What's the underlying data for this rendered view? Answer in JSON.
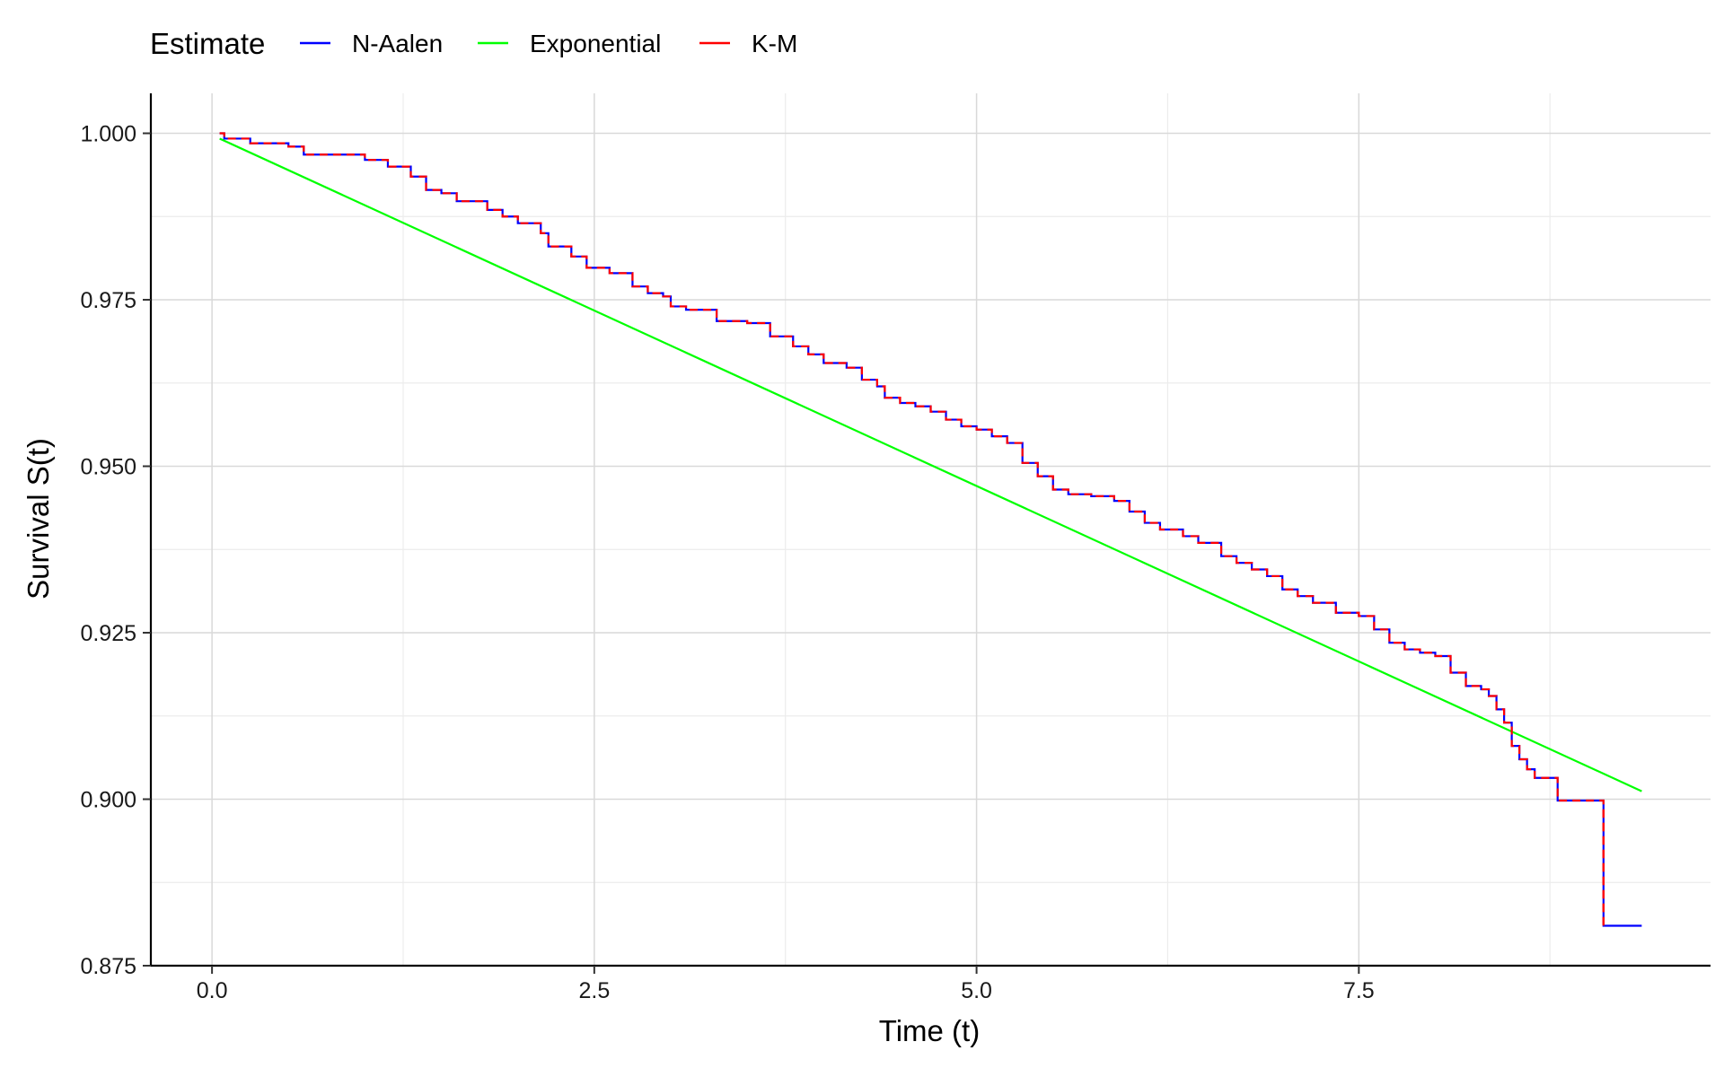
{
  "chart_data": {
    "type": "line",
    "title": "",
    "xlabel": "Time (t)",
    "ylabel": "Survival S(t)",
    "xlim": [
      -0.4,
      9.8
    ],
    "ylim": [
      0.875,
      1.006
    ],
    "x_ticks": [
      0.0,
      2.5,
      5.0,
      7.5
    ],
    "x_tick_labels": [
      "0.0",
      "2.5",
      "5.0",
      "7.5"
    ],
    "y_ticks": [
      0.875,
      0.9,
      0.925,
      0.95,
      0.975,
      1.0
    ],
    "y_tick_labels": [
      "0.875",
      "0.900",
      "0.925",
      "0.950",
      "0.975",
      "1.000"
    ],
    "grid": true,
    "legend": {
      "title": "Estimate",
      "position": "top-left",
      "entries": [
        "N-Aalen",
        "Exponential",
        "K-M"
      ]
    },
    "series": [
      {
        "name": "N-Aalen",
        "color": "#0000FF",
        "style": "step",
        "points": [
          [
            0.05,
            1.0
          ],
          [
            0.08,
            0.9992
          ],
          [
            0.25,
            0.9985
          ],
          [
            0.5,
            0.998
          ],
          [
            0.6,
            0.9968
          ],
          [
            0.9,
            0.9968
          ],
          [
            1.0,
            0.996
          ],
          [
            1.15,
            0.995
          ],
          [
            1.3,
            0.9935
          ],
          [
            1.4,
            0.9915
          ],
          [
            1.5,
            0.991
          ],
          [
            1.6,
            0.9898
          ],
          [
            1.7,
            0.9898
          ],
          [
            1.8,
            0.9885
          ],
          [
            1.9,
            0.9875
          ],
          [
            2.0,
            0.9865
          ],
          [
            2.15,
            0.985
          ],
          [
            2.2,
            0.983
          ],
          [
            2.35,
            0.9815
          ],
          [
            2.45,
            0.9798
          ],
          [
            2.6,
            0.979
          ],
          [
            2.75,
            0.977
          ],
          [
            2.85,
            0.976
          ],
          [
            2.95,
            0.9755
          ],
          [
            3.0,
            0.974
          ],
          [
            3.1,
            0.9735
          ],
          [
            3.3,
            0.9718
          ],
          [
            3.5,
            0.9715
          ],
          [
            3.65,
            0.9695
          ],
          [
            3.8,
            0.968
          ],
          [
            3.9,
            0.9668
          ],
          [
            4.0,
            0.9655
          ],
          [
            4.15,
            0.9648
          ],
          [
            4.25,
            0.963
          ],
          [
            4.35,
            0.962
          ],
          [
            4.4,
            0.9603
          ],
          [
            4.5,
            0.9595
          ],
          [
            4.6,
            0.959
          ],
          [
            4.7,
            0.9582
          ],
          [
            4.8,
            0.957
          ],
          [
            4.9,
            0.956
          ],
          [
            5.0,
            0.9555
          ],
          [
            5.1,
            0.9545
          ],
          [
            5.2,
            0.9535
          ],
          [
            5.3,
            0.9505
          ],
          [
            5.4,
            0.9485
          ],
          [
            5.5,
            0.9465
          ],
          [
            5.6,
            0.9458
          ],
          [
            5.75,
            0.9455
          ],
          [
            5.9,
            0.9448
          ],
          [
            6.0,
            0.9432
          ],
          [
            6.1,
            0.9415
          ],
          [
            6.2,
            0.9405
          ],
          [
            6.35,
            0.9395
          ],
          [
            6.45,
            0.9385
          ],
          [
            6.6,
            0.9365
          ],
          [
            6.7,
            0.9355
          ],
          [
            6.8,
            0.9345
          ],
          [
            6.9,
            0.9335
          ],
          [
            7.0,
            0.9315
          ],
          [
            7.1,
            0.9305
          ],
          [
            7.2,
            0.9295
          ],
          [
            7.35,
            0.928
          ],
          [
            7.5,
            0.9275
          ],
          [
            7.6,
            0.9255
          ],
          [
            7.7,
            0.9235
          ],
          [
            7.8,
            0.9225
          ],
          [
            7.9,
            0.922
          ],
          [
            8.0,
            0.9215
          ],
          [
            8.1,
            0.919
          ],
          [
            8.2,
            0.917
          ],
          [
            8.3,
            0.9165
          ],
          [
            8.35,
            0.9155
          ],
          [
            8.4,
            0.9135
          ],
          [
            8.45,
            0.9115
          ],
          [
            8.5,
            0.908
          ],
          [
            8.55,
            0.906
          ],
          [
            8.6,
            0.9045
          ],
          [
            8.65,
            0.9032
          ],
          [
            8.75,
            0.9032
          ],
          [
            8.8,
            0.8998
          ],
          [
            9.05,
            0.8998
          ],
          [
            9.1,
            0.881
          ],
          [
            9.35,
            0.881
          ]
        ]
      },
      {
        "name": "Exponential",
        "color": "#00FF00",
        "style": "line",
        "points": [
          [
            0.05,
            0.9992
          ],
          [
            9.35,
            0.9012
          ]
        ]
      },
      {
        "name": "K-M",
        "color": "#FF0000",
        "style": "step-dashed",
        "points": [
          [
            0.05,
            1.0
          ],
          [
            0.08,
            0.9992
          ],
          [
            0.25,
            0.9985
          ],
          [
            0.5,
            0.998
          ],
          [
            0.6,
            0.9968
          ],
          [
            0.9,
            0.9968
          ],
          [
            1.0,
            0.996
          ],
          [
            1.15,
            0.995
          ],
          [
            1.3,
            0.9935
          ],
          [
            1.4,
            0.9915
          ],
          [
            1.5,
            0.991
          ],
          [
            1.6,
            0.9898
          ],
          [
            1.7,
            0.9898
          ],
          [
            1.8,
            0.9885
          ],
          [
            1.9,
            0.9875
          ],
          [
            2.0,
            0.9865
          ],
          [
            2.15,
            0.985
          ],
          [
            2.2,
            0.983
          ],
          [
            2.35,
            0.9815
          ],
          [
            2.45,
            0.9798
          ],
          [
            2.6,
            0.979
          ],
          [
            2.75,
            0.977
          ],
          [
            2.85,
            0.976
          ],
          [
            2.95,
            0.9755
          ],
          [
            3.0,
            0.974
          ],
          [
            3.1,
            0.9735
          ],
          [
            3.3,
            0.9718
          ],
          [
            3.5,
            0.9715
          ],
          [
            3.65,
            0.9695
          ],
          [
            3.8,
            0.968
          ],
          [
            3.9,
            0.9668
          ],
          [
            4.0,
            0.9655
          ],
          [
            4.15,
            0.9648
          ],
          [
            4.25,
            0.963
          ],
          [
            4.35,
            0.962
          ],
          [
            4.4,
            0.9603
          ],
          [
            4.5,
            0.9595
          ],
          [
            4.6,
            0.959
          ],
          [
            4.7,
            0.9582
          ],
          [
            4.8,
            0.957
          ],
          [
            4.9,
            0.956
          ],
          [
            5.0,
            0.9555
          ],
          [
            5.1,
            0.9545
          ],
          [
            5.2,
            0.9535
          ],
          [
            5.3,
            0.9505
          ],
          [
            5.4,
            0.9485
          ],
          [
            5.5,
            0.9465
          ],
          [
            5.6,
            0.9458
          ],
          [
            5.75,
            0.9455
          ],
          [
            5.9,
            0.9448
          ],
          [
            6.0,
            0.9432
          ],
          [
            6.1,
            0.9415
          ],
          [
            6.2,
            0.9405
          ],
          [
            6.35,
            0.9395
          ],
          [
            6.45,
            0.9385
          ],
          [
            6.6,
            0.9365
          ],
          [
            6.7,
            0.9355
          ],
          [
            6.8,
            0.9345
          ],
          [
            6.9,
            0.9335
          ],
          [
            7.0,
            0.9315
          ],
          [
            7.1,
            0.9305
          ],
          [
            7.2,
            0.9295
          ],
          [
            7.35,
            0.928
          ],
          [
            7.5,
            0.9275
          ],
          [
            7.6,
            0.9255
          ],
          [
            7.7,
            0.9235
          ],
          [
            7.8,
            0.9225
          ],
          [
            7.9,
            0.922
          ],
          [
            8.0,
            0.9215
          ],
          [
            8.1,
            0.919
          ],
          [
            8.2,
            0.917
          ],
          [
            8.3,
            0.9165
          ],
          [
            8.35,
            0.9155
          ],
          [
            8.4,
            0.9135
          ],
          [
            8.45,
            0.9115
          ],
          [
            8.5,
            0.908
          ],
          [
            8.55,
            0.906
          ],
          [
            8.6,
            0.9045
          ],
          [
            8.65,
            0.9032
          ],
          [
            8.75,
            0.9032
          ],
          [
            8.8,
            0.8998
          ],
          [
            9.05,
            0.8998
          ],
          [
            9.1,
            0.881
          ]
        ],
        "extra_segment": [
          [
            9.1,
            0.8985
          ],
          [
            9.1,
            0.881
          ]
        ]
      }
    ]
  }
}
